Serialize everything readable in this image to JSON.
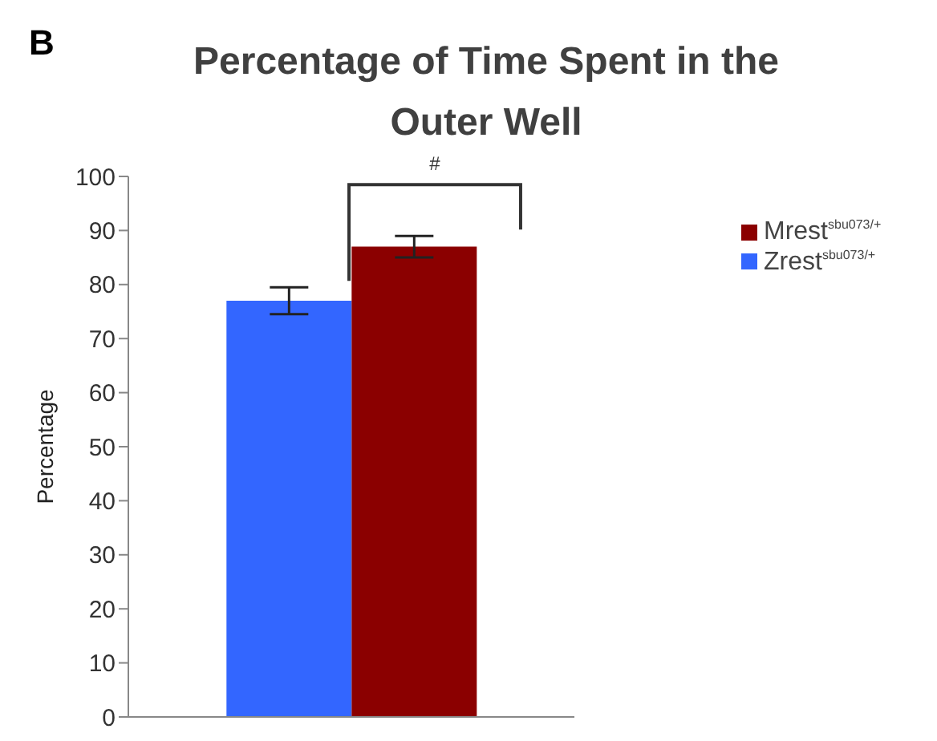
{
  "chart_data": {
    "type": "bar",
    "title": "Percentage of Time Spent in the Outer Well",
    "ylabel": "Percentage",
    "categories": [
      null
    ],
    "series": [
      {
        "name": "Zrest$^{sbu073/+}$",
        "color": "#3366ff",
        "values": [
          77
        ],
        "errors": [
          2.5
        ]
      },
      {
        "name": "Mrest$^{sbu073/+}$",
        "color": "#8b0000",
        "values": [
          87
        ],
        "errors": [
          2
        ]
      }
    ],
    "ylim": [
      0,
      100
    ],
    "yticks": [
      0,
      10,
      20,
      30,
      40,
      50,
      60,
      70,
      80,
      90,
      100
    ],
    "legend": "right",
    "annotations": [
      "B",
      "#"
    ]
  }
}
